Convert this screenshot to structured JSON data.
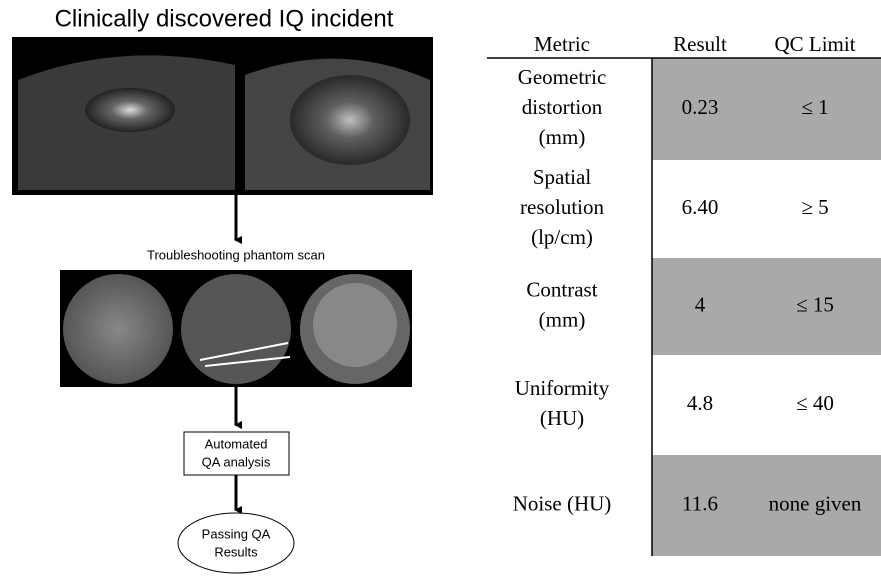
{
  "title": "Clinically discovered IQ incident",
  "steps": {
    "phantom_label": "Troubleshooting phantom scan",
    "analysis": [
      "Automated",
      "QA analysis"
    ],
    "result": [
      "Passing QA",
      "Results"
    ]
  },
  "table": {
    "headers": [
      "Metric",
      "Result",
      "QC Limit"
    ],
    "rows": [
      {
        "metric": [
          "Geometric",
          "distortion",
          "(mm)"
        ],
        "result": "0.23",
        "limit": "≤ 1"
      },
      {
        "metric": [
          "Spatial",
          "resolution",
          "(lp/cm)"
        ],
        "result": "6.40",
        "limit": "≥ 5"
      },
      {
        "metric": [
          "Contrast",
          "(mm)"
        ],
        "result": "4",
        "limit": "≤ 15"
      },
      {
        "metric": [
          "Uniformity",
          "(HU)"
        ],
        "result": "4.8",
        "limit": "≤ 40"
      },
      {
        "metric": [
          "Noise (HU)"
        ],
        "result": "11.6",
        "limit": "none given"
      }
    ]
  }
}
